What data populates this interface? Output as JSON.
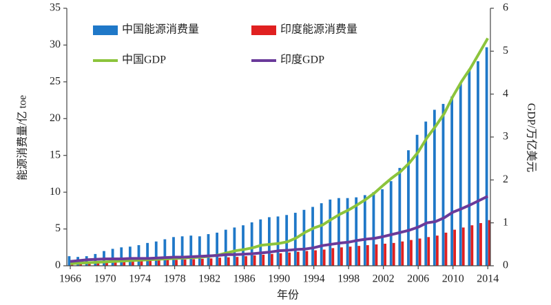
{
  "chart_data": {
    "type": "bar-line",
    "x_label": "年份",
    "y_label": "能源消费量/亿 toe",
    "y2_label": "GDP/万亿美元",
    "x": [
      1966,
      1967,
      1968,
      1969,
      1970,
      1971,
      1972,
      1973,
      1974,
      1975,
      1976,
      1977,
      1978,
      1979,
      1980,
      1981,
      1982,
      1983,
      1984,
      1985,
      1986,
      1987,
      1988,
      1989,
      1990,
      1991,
      1992,
      1993,
      1994,
      1995,
      1996,
      1997,
      1998,
      1999,
      2000,
      2001,
      2002,
      2003,
      2004,
      2005,
      2006,
      2007,
      2008,
      2009,
      2010,
      2011,
      2012,
      2013,
      2014
    ],
    "xlim": [
      1965.6,
      2014.3
    ],
    "xticks": [
      1966,
      1970,
      1974,
      1978,
      1982,
      1986,
      1990,
      1994,
      1998,
      2002,
      2006,
      2010,
      2014
    ],
    "ylim": [
      0,
      35
    ],
    "yticks": [
      0,
      5,
      10,
      15,
      20,
      25,
      30,
      35
    ],
    "y2lim": [
      0,
      6
    ],
    "y2ticks": [
      0,
      1,
      2,
      3,
      4,
      5,
      6
    ],
    "series": [
      {
        "name": "中国能源消费量",
        "kind": "bar",
        "color": "#1f78c8",
        "values": [
          1.3,
          1.2,
          1.3,
          1.6,
          2.0,
          2.3,
          2.5,
          2.6,
          2.8,
          3.1,
          3.3,
          3.6,
          3.9,
          4.0,
          4.1,
          4.0,
          4.3,
          4.5,
          4.9,
          5.2,
          5.5,
          5.9,
          6.3,
          6.6,
          6.7,
          6.9,
          7.2,
          7.6,
          8.0,
          8.5,
          9.0,
          9.2,
          9.2,
          9.3,
          9.6,
          10.0,
          10.4,
          11.5,
          13.3,
          15.7,
          17.8,
          19.6,
          21.2,
          22.0,
          23.0,
          24.8,
          26.7,
          27.8,
          29.7
        ]
      },
      {
        "name": "印度能源消费量",
        "kind": "bar",
        "color": "#e02020",
        "values": [
          0.5,
          0.5,
          0.5,
          0.55,
          0.6,
          0.6,
          0.65,
          0.65,
          0.7,
          0.7,
          0.75,
          0.8,
          0.8,
          0.85,
          0.9,
          0.95,
          1.0,
          1.1,
          1.15,
          1.2,
          1.3,
          1.4,
          1.5,
          1.6,
          1.7,
          1.8,
          1.9,
          2.0,
          2.1,
          2.2,
          2.4,
          2.5,
          2.6,
          2.7,
          2.8,
          2.9,
          3.0,
          3.1,
          3.3,
          3.5,
          3.7,
          3.9,
          4.1,
          4.5,
          4.9,
          5.2,
          5.5,
          5.8,
          6.2
        ]
      },
      {
        "name": "中国GDP",
        "kind": "line",
        "axis": "y2",
        "color": "#8cc43c",
        "values": [
          0.05,
          0.06,
          0.07,
          0.08,
          0.09,
          0.1,
          0.11,
          0.12,
          0.13,
          0.14,
          0.15,
          0.16,
          0.17,
          0.18,
          0.19,
          0.2,
          0.22,
          0.25,
          0.3,
          0.35,
          0.38,
          0.42,
          0.48,
          0.5,
          0.52,
          0.56,
          0.65,
          0.78,
          0.88,
          0.95,
          1.08,
          1.2,
          1.3,
          1.42,
          1.55,
          1.7,
          1.88,
          2.05,
          2.2,
          2.4,
          2.65,
          2.98,
          3.25,
          3.55,
          3.95,
          4.3,
          4.6,
          4.95,
          5.3
        ]
      },
      {
        "name": "印度GDP",
        "kind": "line",
        "axis": "y2",
        "color": "#6a3a9a",
        "values": [
          0.1,
          0.12,
          0.14,
          0.15,
          0.16,
          0.16,
          0.16,
          0.17,
          0.17,
          0.17,
          0.18,
          0.19,
          0.2,
          0.2,
          0.21,
          0.22,
          0.23,
          0.24,
          0.26,
          0.26,
          0.27,
          0.28,
          0.3,
          0.32,
          0.35,
          0.36,
          0.38,
          0.39,
          0.42,
          0.47,
          0.5,
          0.53,
          0.55,
          0.59,
          0.62,
          0.64,
          0.68,
          0.73,
          0.78,
          0.83,
          0.9,
          1.0,
          1.03,
          1.12,
          1.25,
          1.33,
          1.42,
          1.52,
          1.62
        ]
      }
    ]
  }
}
